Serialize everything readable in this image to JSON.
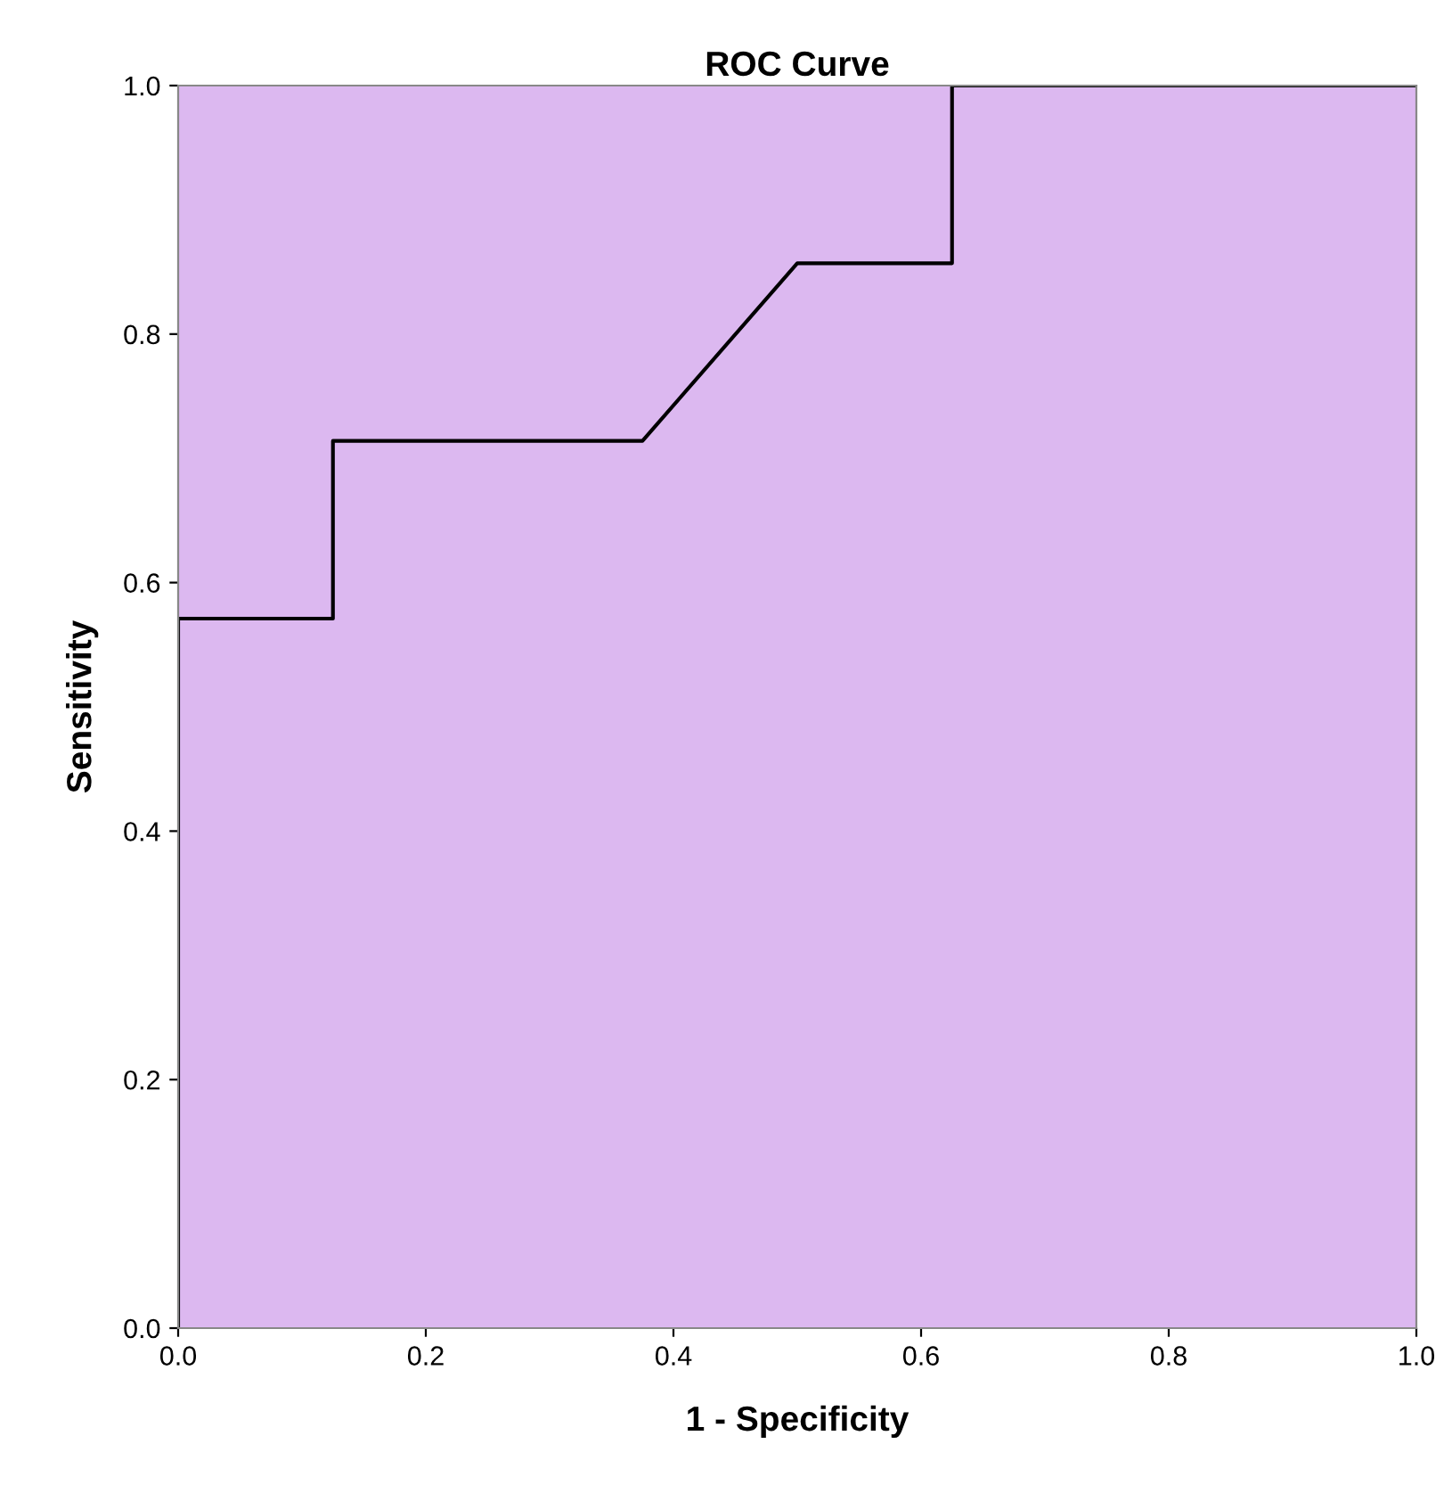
{
  "chart_data": {
    "type": "line",
    "title": "ROC Curve",
    "xlabel": "1 - Specificity",
    "ylabel": "Sensitivity",
    "x": [
      0,
      0,
      0.125,
      0.125,
      0.375,
      0.5,
      0.625,
      0.625,
      1
    ],
    "series": [
      {
        "color": "#000000",
        "values": [
          0,
          0.571,
          0.571,
          0.714,
          0.714,
          0.857,
          0.857,
          1,
          1
        ]
      }
    ],
    "xlim": [
      0,
      1
    ],
    "ylim": [
      0,
      1
    ],
    "xticks": [
      {
        "value": 0,
        "label": "0.0"
      },
      0.2,
      0.4,
      0.6,
      0.8,
      {
        "value": 1,
        "label": "1.0"
      }
    ],
    "yticks": [
      {
        "value": 0,
        "label": "0.0"
      },
      0.2,
      0.4,
      0.6,
      0.8,
      {
        "value": 1,
        "label": "1.0"
      }
    ],
    "grid": false,
    "marker": "none",
    "line_style": "solid"
  }
}
